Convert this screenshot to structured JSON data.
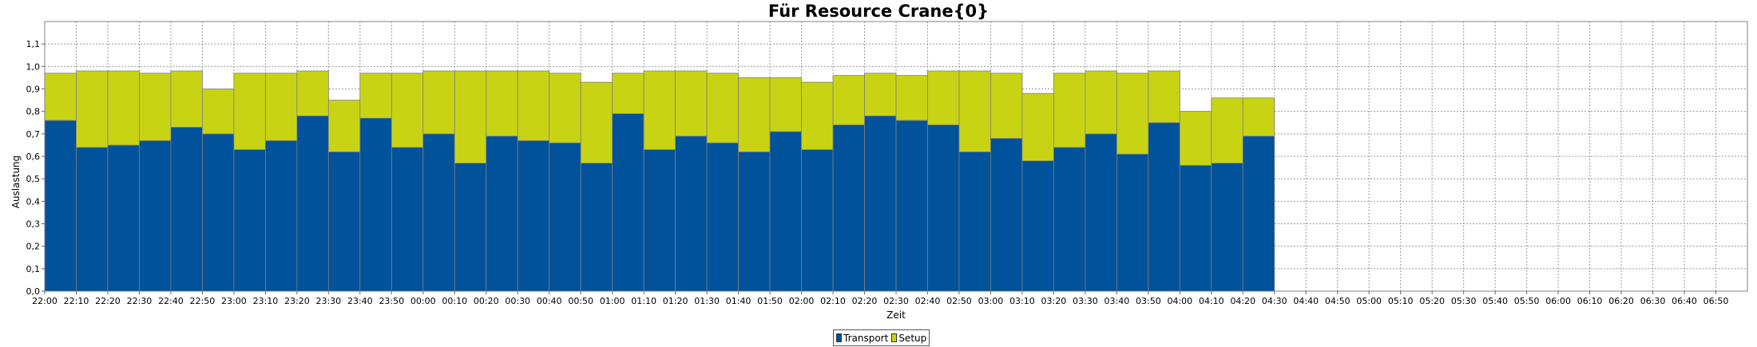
{
  "chart_data": {
    "type": "bar",
    "stacked": true,
    "title": "Für Resource Crane{0}",
    "xlabel": "Zeit",
    "ylabel": "Auslastung",
    "ylim": [
      0,
      1.2
    ],
    "yticks": [
      "0,0",
      "0,1",
      "0,2",
      "0,3",
      "0,4",
      "0,5",
      "0,6",
      "0,7",
      "0,8",
      "0,9",
      "1,0",
      "1,1"
    ],
    "xticks": [
      "22:00",
      "22:10",
      "22:20",
      "22:30",
      "22:40",
      "22:50",
      "23:00",
      "23:10",
      "23:20",
      "23:30",
      "23:40",
      "23:50",
      "00:00",
      "00:10",
      "00:20",
      "00:30",
      "00:40",
      "00:50",
      "01:00",
      "01:10",
      "01:20",
      "01:30",
      "01:40",
      "01:50",
      "02:00",
      "02:10",
      "02:20",
      "02:30",
      "02:40",
      "02:50",
      "03:00",
      "03:10",
      "03:20",
      "03:30",
      "03:40",
      "03:50",
      "04:00",
      "04:10",
      "04:20",
      "04:30",
      "04:40",
      "04:50",
      "05:00",
      "05:10",
      "05:20",
      "05:30",
      "05:40",
      "05:50",
      "06:00",
      "06:10",
      "06:20",
      "06:30",
      "06:40",
      "06:50"
    ],
    "grid": true,
    "legend_position": "bottom",
    "bar_slots": 54,
    "categories": [
      "22:00",
      "22:10",
      "22:20",
      "22:30",
      "22:40",
      "22:50",
      "23:00",
      "23:10",
      "23:20",
      "23:30",
      "23:40",
      "23:50",
      "00:00",
      "00:10",
      "00:20",
      "00:30",
      "00:40",
      "00:50",
      "01:00",
      "01:10",
      "01:20",
      "01:30",
      "01:40",
      "01:50",
      "02:00",
      "02:10",
      "02:20",
      "02:30",
      "02:40",
      "02:50",
      "03:00",
      "03:10",
      "03:20",
      "03:30",
      "03:40",
      "03:50",
      "04:00",
      "04:10",
      "04:20"
    ],
    "series": [
      {
        "name": "Transport",
        "color": "#00529b",
        "values": [
          0.76,
          0.64,
          0.65,
          0.67,
          0.73,
          0.7,
          0.63,
          0.67,
          0.78,
          0.62,
          0.77,
          0.64,
          0.7,
          0.57,
          0.69,
          0.67,
          0.66,
          0.57,
          0.79,
          0.63,
          0.69,
          0.66,
          0.62,
          0.71,
          0.63,
          0.74,
          0.78,
          0.76,
          0.74,
          0.62,
          0.68,
          0.58,
          0.64,
          0.7,
          0.61,
          0.75,
          0.56,
          0.57,
          0.69
        ]
      },
      {
        "name": "Setup",
        "color": "#c8d413",
        "values": [
          0.21,
          0.34,
          0.33,
          0.3,
          0.25,
          0.2,
          0.34,
          0.3,
          0.2,
          0.23,
          0.2,
          0.33,
          0.28,
          0.41,
          0.29,
          0.31,
          0.31,
          0.36,
          0.18,
          0.35,
          0.29,
          0.31,
          0.33,
          0.24,
          0.3,
          0.22,
          0.19,
          0.2,
          0.24,
          0.36,
          0.29,
          0.3,
          0.33,
          0.28,
          0.36,
          0.23,
          0.24,
          0.29,
          0.17
        ]
      }
    ]
  }
}
